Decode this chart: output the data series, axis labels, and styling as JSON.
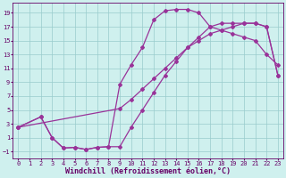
{
  "xlabel": "Windchill (Refroidissement éolien,°C)",
  "background_color": "#cff0ee",
  "grid_color": "#99cccc",
  "line_color": "#993399",
  "xlim": [
    -0.5,
    23.5
  ],
  "ylim": [
    -2.0,
    20.5
  ],
  "xticks": [
    0,
    1,
    2,
    3,
    4,
    5,
    6,
    7,
    8,
    9,
    10,
    11,
    12,
    13,
    14,
    15,
    16,
    17,
    18,
    19,
    20,
    21,
    22,
    23
  ],
  "yticks": [
    -1,
    1,
    3,
    5,
    7,
    9,
    11,
    13,
    15,
    17,
    19
  ],
  "curve1_x": [
    0,
    2,
    3,
    4,
    5,
    6,
    7,
    8,
    9,
    10,
    11,
    12,
    13,
    14,
    15,
    16,
    17,
    18,
    19,
    20,
    21,
    22,
    23
  ],
  "curve1_y": [
    2.5,
    4.0,
    1.0,
    -0.5,
    -0.4,
    -0.7,
    -0.4,
    -0.3,
    8.7,
    11.5,
    14.0,
    18.0,
    19.3,
    19.5,
    19.5,
    19.0,
    17.0,
    16.5,
    16.0,
    15.5,
    15.0,
    13.0,
    11.5
  ],
  "curve2_x": [
    0,
    2,
    3,
    4,
    5,
    6,
    7,
    8,
    9,
    10,
    11,
    12,
    13,
    14,
    15,
    16,
    17,
    18,
    19,
    20,
    21,
    22,
    23
  ],
  "curve2_y": [
    2.5,
    4.0,
    1.0,
    -0.5,
    -0.4,
    -0.7,
    -0.4,
    -0.3,
    -0.3,
    2.5,
    5.0,
    7.5,
    10.0,
    12.0,
    14.0,
    15.5,
    17.0,
    17.5,
    17.5,
    17.5,
    17.5,
    17.0,
    10.0
  ],
  "curve3_x": [
    0,
    9,
    10,
    11,
    12,
    13,
    14,
    15,
    16,
    17,
    18,
    19,
    20,
    21,
    22,
    23
  ],
  "curve3_y": [
    2.5,
    5.2,
    6.5,
    8.0,
    9.5,
    11.0,
    12.5,
    14.0,
    15.0,
    16.0,
    16.5,
    17.0,
    17.5,
    17.5,
    17.0,
    10.0
  ],
  "marker": "D",
  "markersize": 2.0,
  "linewidth": 0.9,
  "tick_fontsize": 5.0,
  "xlabel_fontsize": 6.0
}
